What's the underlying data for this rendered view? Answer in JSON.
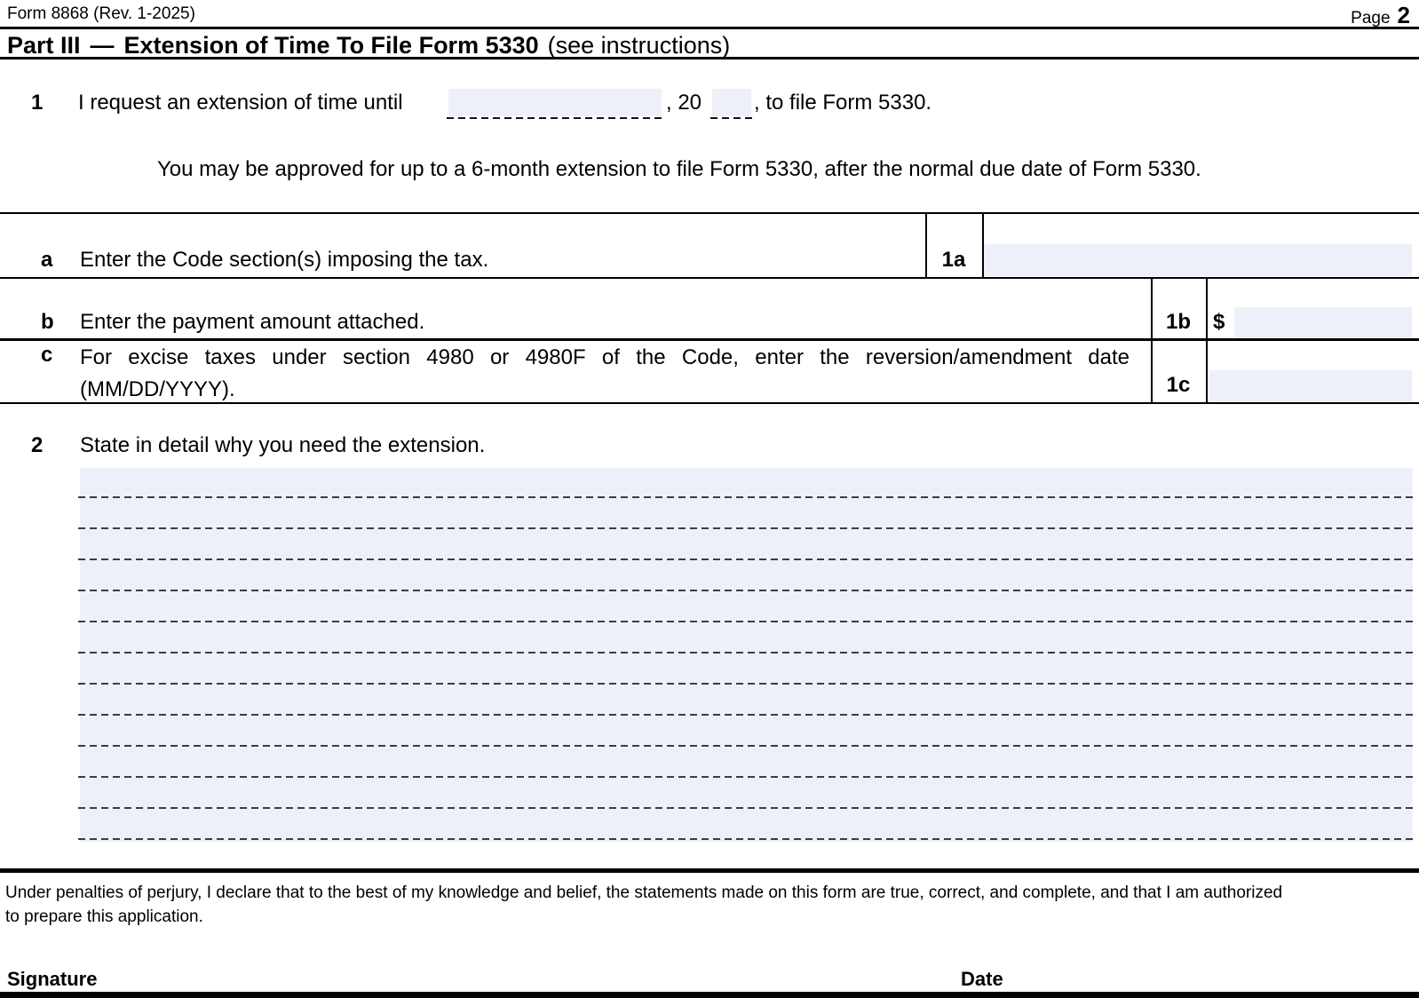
{
  "header": {
    "form_id": "Form 8868 (Rev. 1-2025)",
    "page_label": "Page",
    "page_number": "2"
  },
  "part3": {
    "part_label": "Part III",
    "separator": "—",
    "title": "Extension of Time To File Form 5330",
    "subtitle": "(see instructions)"
  },
  "line1": {
    "number": "1",
    "text_before_date": "I request an extension of time until",
    "date_value": "",
    "text_century": ", 20",
    "year_value": "",
    "text_after": ", to file Form 5330.",
    "note": "You may be approved for up to a 6-month extension to file Form 5330, after the normal due date of Form 5330."
  },
  "line_1a": {
    "letter": "a",
    "label": "Enter the Code section(s) imposing the tax.",
    "box_label": "1a",
    "value": ""
  },
  "line_1b": {
    "letter": "b",
    "label": "Enter the payment amount attached.",
    "box_label": "1b",
    "currency_symbol": "$",
    "value": ""
  },
  "line_1c": {
    "letter": "c",
    "label_line1": "For excise taxes under section 4980 or 4980F of the Code, enter the reversion/amendment date",
    "label_line2": "(MM/DD/YYYY).",
    "box_label": "1c",
    "value": ""
  },
  "line2": {
    "number": "2",
    "label": "State in detail why you need the extension.",
    "statement_value": "",
    "ruled_line_count": 12
  },
  "declaration": {
    "line1": "Under penalties of perjury, I declare that to the best of my knowledge and belief, the statements made on this form are true, correct, and complete, and that I am authorized",
    "line2": "to prepare this application."
  },
  "signature_block": {
    "signature_label": "Signature",
    "date_label": "Date"
  },
  "colors": {
    "field_shade": "#eef0f9",
    "border_black": "#000000",
    "ruled_line": "#3c3c44"
  }
}
